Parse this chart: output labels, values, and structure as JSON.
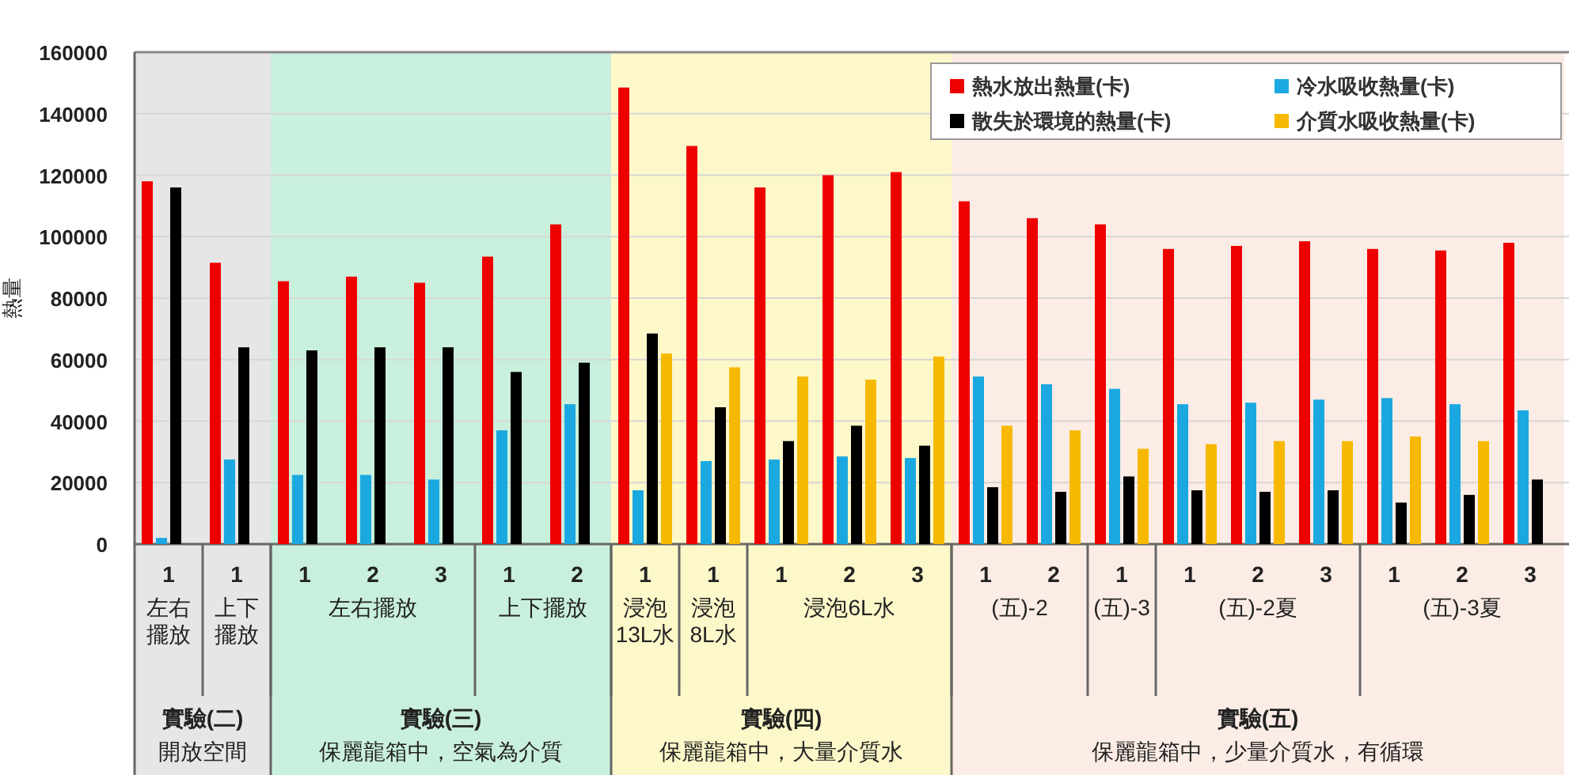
{
  "chart_data": {
    "type": "bar",
    "ylabel": "熱量",
    "categories": [
      "1",
      "1",
      "1",
      "2",
      "3",
      "1",
      "2",
      "1",
      "1",
      "1",
      "2",
      "3",
      "1",
      "2",
      "1",
      "1",
      "2",
      "3",
      "1",
      "2",
      "3"
    ],
    "series": [
      {
        "name": "熱水放出熱量(卡)",
        "color": "#ee0000",
        "values": [
          118000,
          91500,
          85500,
          87000,
          85000,
          93500,
          104000,
          148500,
          129500,
          116000,
          120000,
          121000,
          111500,
          106000,
          104000,
          96000,
          97000,
          98500,
          96000,
          95500,
          98000
        ]
      },
      {
        "name": "冷水吸收熱量(卡)",
        "color": "#1ba8e0",
        "values": [
          2000,
          27500,
          22500,
          22500,
          21000,
          37000,
          45500,
          17500,
          27000,
          27500,
          28500,
          28000,
          54500,
          52000,
          50500,
          45500,
          46000,
          47000,
          47500,
          45500,
          43500
        ]
      },
      {
        "name": "散失於環境的熱量(卡)",
        "color": "#000000",
        "values": [
          116000,
          64000,
          63000,
          64000,
          64000,
          56000,
          59000,
          68500,
          44500,
          33500,
          38500,
          32000,
          18500,
          17000,
          22000,
          17500,
          17000,
          17500,
          13500,
          16000,
          21000
        ]
      },
      {
        "name": "介質水吸收熱量(卡)",
        "color": "#f6b900",
        "values": [
          null,
          null,
          null,
          null,
          null,
          null,
          null,
          62000,
          57500,
          54500,
          53500,
          61000,
          38500,
          37000,
          31000,
          32500,
          33500,
          33500,
          35000,
          33500,
          null
        ]
      }
    ],
    "ylim": [
      0,
      160000
    ],
    "yticks": [
      0,
      20000,
      40000,
      60000,
      80000,
      100000,
      120000,
      140000,
      160000
    ],
    "grid": "y",
    "legend": "top right",
    "annotations": [
      "左右擺放",
      "上下擺放",
      "左右擺放",
      "上下擺放",
      "浸泡13L水",
      "浸泡8L水",
      "浸泡6L水",
      "(五)-2",
      "(五)-3",
      "(五)-2夏",
      "(五)-3夏",
      "實驗(二)",
      "開放空間",
      "實驗(三)",
      "保麗龍箱中，空氣為介質",
      "實驗(四)",
      "保麗龍箱中，大量介質水",
      "實驗(五)",
      "保麗龍箱中，少量介質水，有循環"
    ]
  }
}
